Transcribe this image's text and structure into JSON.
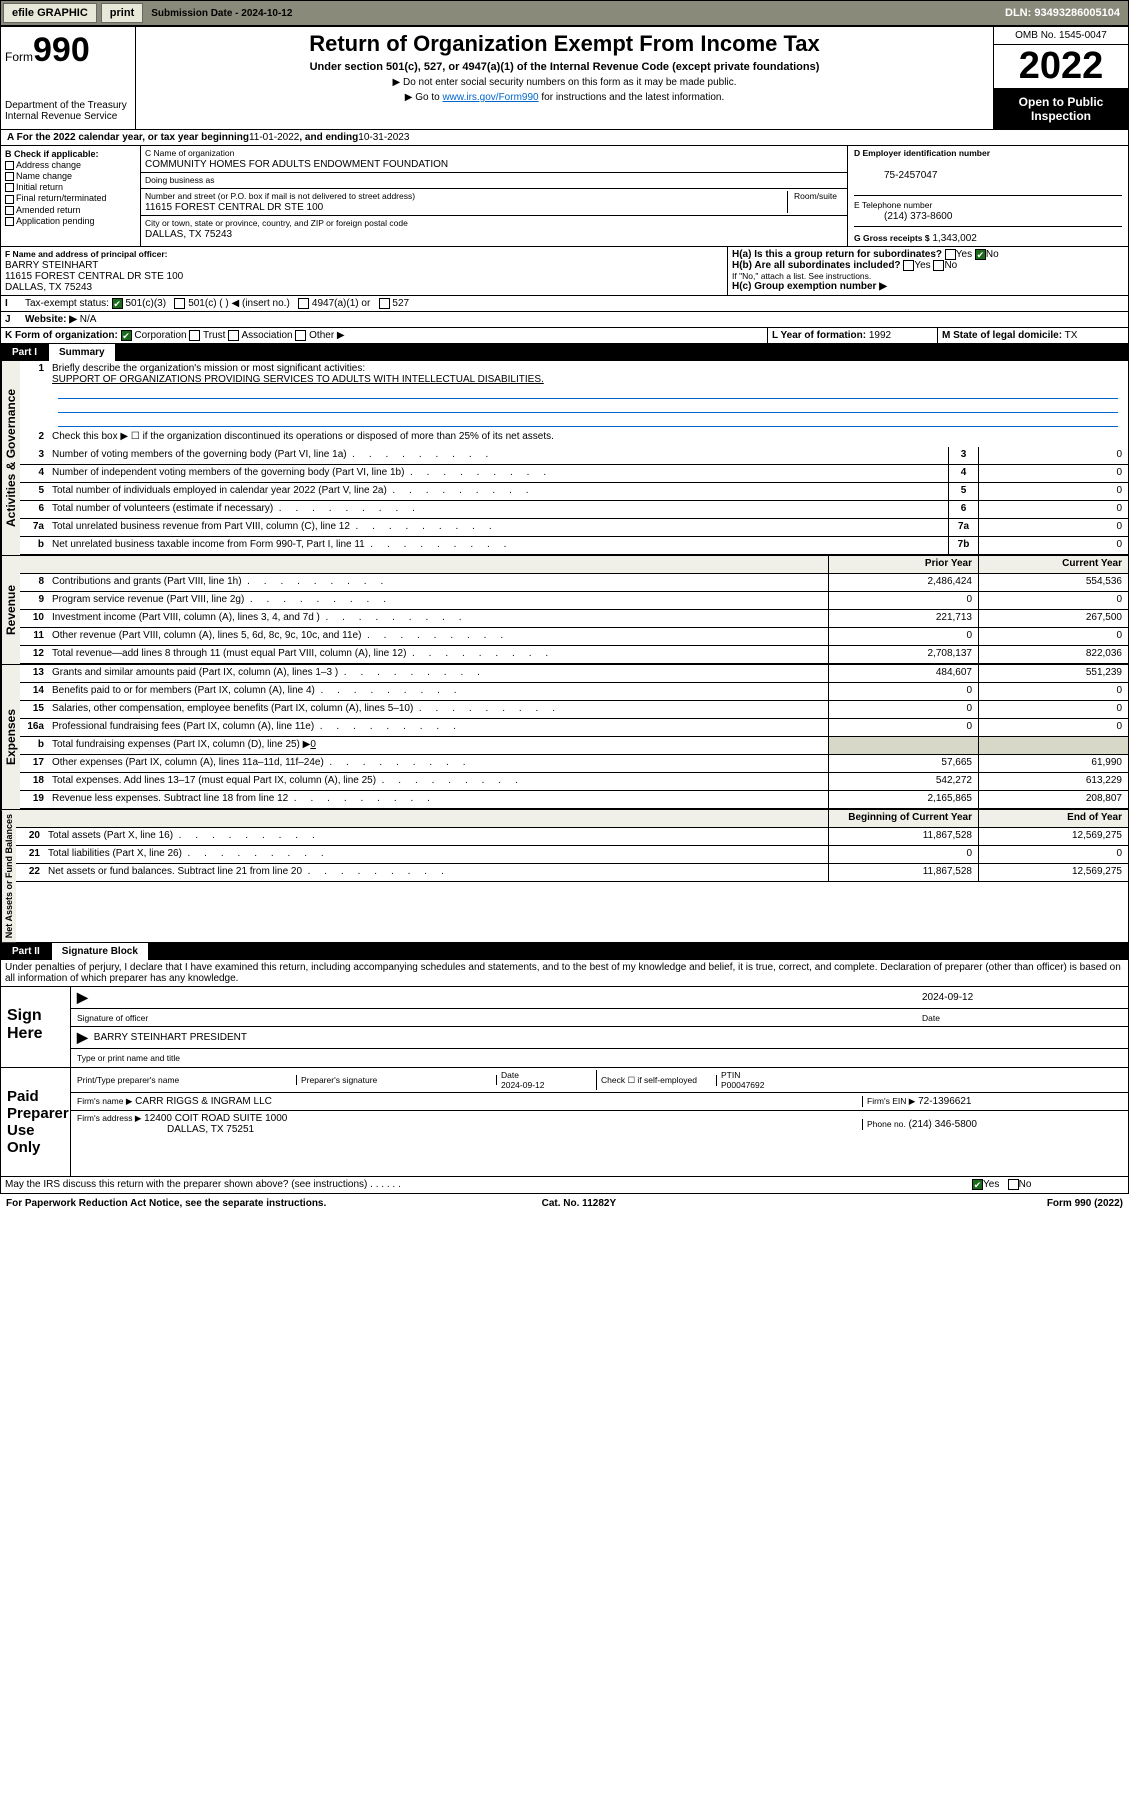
{
  "topbar": {
    "efile": "efile GRAPHIC",
    "print": "print",
    "sub_label": "Submission Date - 2024-10-12",
    "dln": "DLN: 93493286005104"
  },
  "header": {
    "form_word": "Form",
    "form_num": "990",
    "title": "Return of Organization Exempt From Income Tax",
    "subtitle": "Under section 501(c), 527, or 4947(a)(1) of the Internal Revenue Code (except private foundations)",
    "note1": "▶ Do not enter social security numbers on this form as it may be made public.",
    "note2_pre": "▶ Go to ",
    "note2_link": "www.irs.gov/Form990",
    "note2_post": " for instructions and the latest information.",
    "dept": "Department of the Treasury\nInternal Revenue Service",
    "omb": "OMB No. 1545-0047",
    "year": "2022",
    "inspect": "Open to Public Inspection"
  },
  "periodA": {
    "label_pre": "A For the 2022 calendar year, or tax year beginning ",
    "begin": "11-01-2022",
    "mid": " , and ending ",
    "end": "10-31-2023"
  },
  "boxB": {
    "hdr": "B Check if applicable:",
    "items": [
      "Address change",
      "Name change",
      "Initial return",
      "Final return/terminated",
      "Amended return",
      "Application pending"
    ]
  },
  "boxC": {
    "name_lbl": "C Name of organization",
    "name": "COMMUNITY HOMES FOR ADULTS ENDOWMENT FOUNDATION",
    "dba_lbl": "Doing business as",
    "addr_lbl": "Number and street (or P.O. box if mail is not delivered to street address)",
    "room_lbl": "Room/suite",
    "addr": "11615 FOREST CENTRAL DR STE 100",
    "city_lbl": "City or town, state or province, country, and ZIP or foreign postal code",
    "city": "DALLAS, TX  75243"
  },
  "boxD": {
    "lbl": "D Employer identification number",
    "val": "75-2457047"
  },
  "boxE": {
    "lbl": "E Telephone number",
    "val": "(214) 373-8600"
  },
  "boxG": {
    "lbl": "G Gross receipts $",
    "val": "1,343,002"
  },
  "boxF": {
    "lbl": "F Name and address of principal officer:",
    "name": "BARRY STEINHART",
    "addr1": "11615 FOREST CENTRAL DR STE 100",
    "addr2": "DALLAS, TX  75243"
  },
  "boxH": {
    "a_lbl": "H(a)  Is this a group return for subordinates?",
    "a_yes": "Yes",
    "a_no": "No",
    "b_lbl": "H(b)  Are all subordinates included?",
    "b_note": "If \"No,\" attach a list. See instructions.",
    "c_lbl": "H(c)  Group exemption number ▶"
  },
  "boxI": {
    "lbl": "Tax-exempt status:",
    "o1": "501(c)(3)",
    "o2": "501(c) (  ) ◀ (insert no.)",
    "o3": "4947(a)(1) or",
    "o4": "527"
  },
  "boxJ": {
    "lbl": "Website: ▶",
    "val": "N/A"
  },
  "boxK": {
    "lbl": "K Form of organization:",
    "o1": "Corporation",
    "o2": "Trust",
    "o3": "Association",
    "o4": "Other ▶"
  },
  "boxL": {
    "lbl": "L Year of formation:",
    "val": "1992"
  },
  "boxM": {
    "lbl": "M State of legal domicile:",
    "val": "TX"
  },
  "part1": {
    "hdr": "Part I",
    "title": "Summary",
    "l1_lbl": "Briefly describe the organization's mission or most significant activities:",
    "l1_val": "SUPPORT OF ORGANIZATIONS PROVIDING SERVICES TO ADULTS WITH INTELLECTUAL DISABILITIES.",
    "l2": "Check this box ▶ ☐ if the organization discontinued its operations or disposed of more than 25% of its net assets.",
    "col_prior": "Prior Year",
    "col_curr": "Current Year",
    "col_beg": "Beginning of Current Year",
    "col_end": "End of Year",
    "sideA": "Activities & Governance",
    "sideR": "Revenue",
    "sideE": "Expenses",
    "sideN": "Net Assets or Fund Balances",
    "rows_single": [
      {
        "n": "3",
        "t": "Number of voting members of the governing body (Part VI, line 1a)",
        "b": "3",
        "v": "0"
      },
      {
        "n": "4",
        "t": "Number of independent voting members of the governing body (Part VI, line 1b)",
        "b": "4",
        "v": "0"
      },
      {
        "n": "5",
        "t": "Total number of individuals employed in calendar year 2022 (Part V, line 2a)",
        "b": "5",
        "v": "0"
      },
      {
        "n": "6",
        "t": "Total number of volunteers (estimate if necessary)",
        "b": "6",
        "v": "0"
      },
      {
        "n": "7a",
        "t": "Total unrelated business revenue from Part VIII, column (C), line 12",
        "b": "7a",
        "v": "0"
      },
      {
        "n": "b",
        "t": "Net unrelated business taxable income from Form 990-T, Part I, line 11",
        "b": "7b",
        "v": "0"
      }
    ],
    "rows_rev": [
      {
        "n": "8",
        "t": "Contributions and grants (Part VIII, line 1h)",
        "p": "2,486,424",
        "c": "554,536"
      },
      {
        "n": "9",
        "t": "Program service revenue (Part VIII, line 2g)",
        "p": "0",
        "c": "0"
      },
      {
        "n": "10",
        "t": "Investment income (Part VIII, column (A), lines 3, 4, and 7d )",
        "p": "221,713",
        "c": "267,500"
      },
      {
        "n": "11",
        "t": "Other revenue (Part VIII, column (A), lines 5, 6d, 8c, 9c, 10c, and 11e)",
        "p": "0",
        "c": "0"
      },
      {
        "n": "12",
        "t": "Total revenue—add lines 8 through 11 (must equal Part VIII, column (A), line 12)",
        "p": "2,708,137",
        "c": "822,036"
      }
    ],
    "rows_exp": [
      {
        "n": "13",
        "t": "Grants and similar amounts paid (Part IX, column (A), lines 1–3 )",
        "p": "484,607",
        "c": "551,239"
      },
      {
        "n": "14",
        "t": "Benefits paid to or for members (Part IX, column (A), line 4)",
        "p": "0",
        "c": "0"
      },
      {
        "n": "15",
        "t": "Salaries, other compensation, employee benefits (Part IX, column (A), lines 5–10)",
        "p": "0",
        "c": "0"
      },
      {
        "n": "16a",
        "t": "Professional fundraising fees (Part IX, column (A), line 11e)",
        "p": "0",
        "c": "0"
      }
    ],
    "row16b": {
      "n": "b",
      "t": "Total fundraising expenses (Part IX, column (D), line 25) ▶",
      "v": "0"
    },
    "rows_exp2": [
      {
        "n": "17",
        "t": "Other expenses (Part IX, column (A), lines 11a–11d, 11f–24e)",
        "p": "57,665",
        "c": "61,990"
      },
      {
        "n": "18",
        "t": "Total expenses. Add lines 13–17 (must equal Part IX, column (A), line 25)",
        "p": "542,272",
        "c": "613,229"
      },
      {
        "n": "19",
        "t": "Revenue less expenses. Subtract line 18 from line 12",
        "p": "2,165,865",
        "c": "208,807"
      }
    ],
    "rows_net": [
      {
        "n": "20",
        "t": "Total assets (Part X, line 16)",
        "p": "11,867,528",
        "c": "12,569,275"
      },
      {
        "n": "21",
        "t": "Total liabilities (Part X, line 26)",
        "p": "0",
        "c": "0"
      },
      {
        "n": "22",
        "t": "Net assets or fund balances. Subtract line 21 from line 20",
        "p": "11,867,528",
        "c": "12,569,275"
      }
    ]
  },
  "part2": {
    "hdr": "Part II",
    "title": "Signature Block",
    "decl": "Under penalties of perjury, I declare that I have examined this return, including accompanying schedules and statements, and to the best of my knowledge and belief, it is true, correct, and complete. Declaration of preparer (other than officer) is based on all information of which preparer has any knowledge.",
    "sign_here": "Sign Here",
    "sig_officer": "Signature of officer",
    "date_lbl": "Date",
    "sig_date": "2024-09-12",
    "officer_name": "BARRY STEINHART  PRESIDENT",
    "type_lbl": "Type or print name and title",
    "paid": "Paid Preparer Use Only",
    "pt_name_lbl": "Print/Type preparer's name",
    "pt_sig_lbl": "Preparer's signature",
    "pt_date_lbl": "Date",
    "pt_date": "2024-09-12",
    "pt_check_lbl": "Check ☐ if self-employed",
    "ptin_lbl": "PTIN",
    "ptin": "P00047692",
    "firm_name_lbl": "Firm's name    ▶",
    "firm_name": "CARR RIGGS & INGRAM LLC",
    "firm_ein_lbl": "Firm's EIN ▶",
    "firm_ein": "72-1396621",
    "firm_addr_lbl": "Firm's address ▶",
    "firm_addr1": "12400 COIT ROAD SUITE 1000",
    "firm_addr2": "DALLAS, TX  75251",
    "phone_lbl": "Phone no.",
    "phone": "(214) 346-5800",
    "discuss": "May the IRS discuss this return with the preparer shown above? (see instructions)",
    "yes": "Yes",
    "no": "No"
  },
  "footer": {
    "l": "For Paperwork Reduction Act Notice, see the separate instructions.",
    "c": "Cat. No. 11282Y",
    "r": "Form 990 (2022)"
  }
}
